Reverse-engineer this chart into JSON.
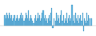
{
  "values": [
    4,
    3,
    5,
    4,
    3,
    5,
    4,
    3,
    4,
    2,
    3,
    4,
    2,
    3,
    4,
    3,
    2,
    3,
    4,
    5,
    3,
    4,
    2,
    3,
    5,
    4,
    3,
    6,
    2,
    3,
    4,
    3,
    2,
    1,
    3,
    4,
    2,
    3,
    5,
    3,
    4,
    2,
    3,
    5,
    6,
    3,
    4,
    2,
    3,
    1,
    3,
    4,
    2,
    5,
    7,
    -1,
    3,
    0,
    2,
    5,
    2,
    4,
    3,
    1,
    4,
    6,
    2,
    4,
    1,
    3,
    2,
    5,
    1,
    3,
    4,
    2,
    3,
    8,
    2,
    4,
    1,
    5,
    3,
    2,
    4,
    1,
    3,
    4,
    2,
    5,
    -2,
    3,
    2,
    1,
    5,
    2,
    4,
    3,
    0,
    3
  ],
  "bar_color": "#6BB8E0",
  "edge_color": "#3A8FBF",
  "background_color": "#ffffff",
  "ylim": [
    -4,
    10
  ],
  "bar_width": 1.0
}
